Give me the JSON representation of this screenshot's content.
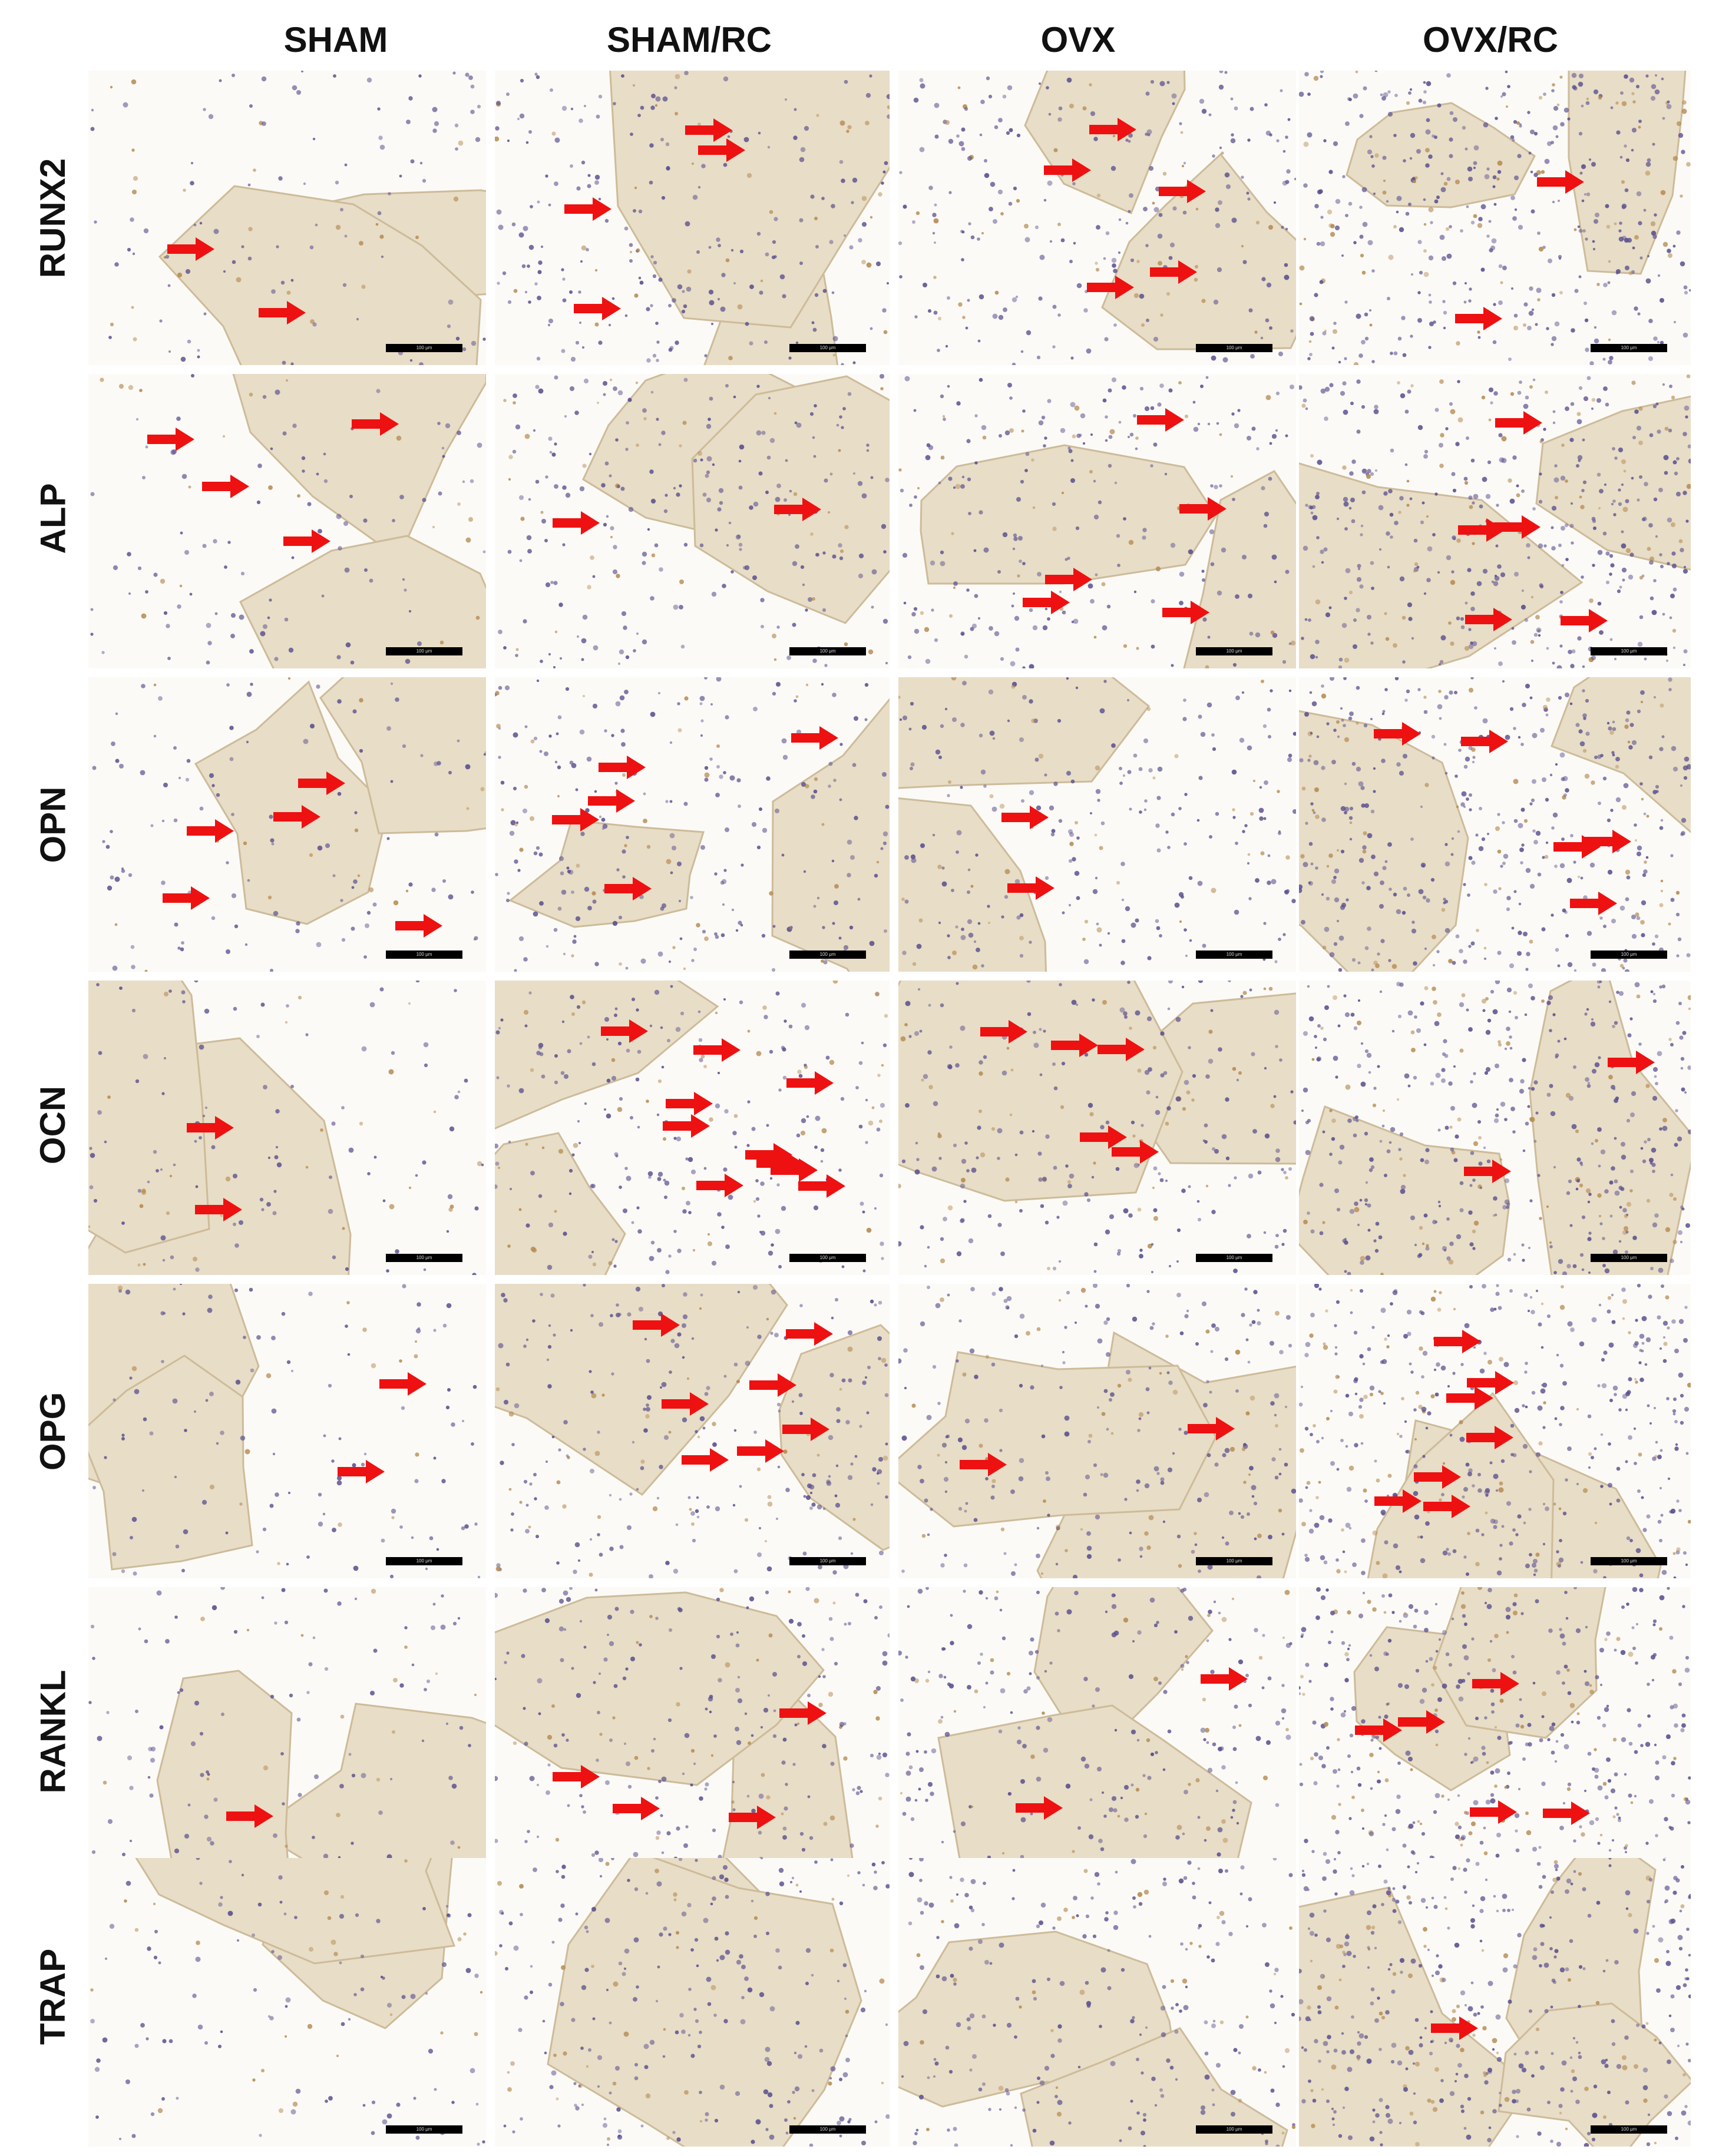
{
  "columns": [
    "SHAM",
    "SHAM/RC",
    "OVX",
    "OVX/RC"
  ],
  "rows": [
    "RUNX2",
    "ALP",
    "OPN",
    "OCN",
    "OPG",
    "RANKL",
    "TRAP"
  ],
  "scale_bar_label": "100 μm",
  "colors": {
    "background": "#ffffff",
    "bone_tissue": "#e8ddc6",
    "empty_space": "#fbfaf6",
    "cell_nuclei": "#5a4f8f",
    "dab_stain": "#b58a52",
    "arrow": "#ee1111",
    "scale_bar": "#000000"
  },
  "arrow_counts": [
    [
      2,
      4,
      5,
      2
    ],
    [
      4,
      2,
      5,
      5
    ],
    [
      5,
      5,
      2,
      5
    ],
    [
      2,
      10,
      5,
      2
    ],
    [
      2,
      7,
      2,
      7
    ],
    [
      1,
      4,
      2,
      5
    ],
    [
      0,
      0,
      0,
      1
    ]
  ],
  "icons": {
    "arrow": "red-right-arrow-icon"
  }
}
